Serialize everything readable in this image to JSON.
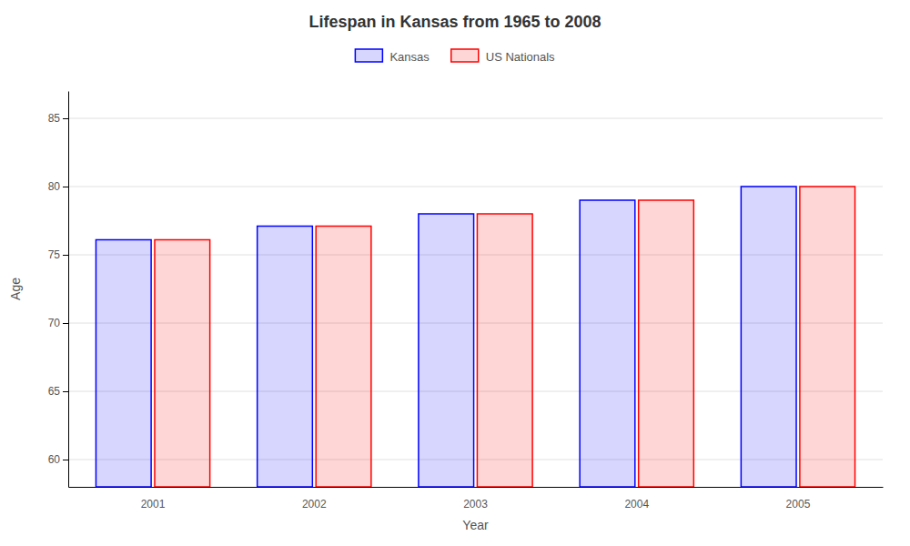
{
  "chart_data": {
    "type": "bar",
    "title": "Lifespan in Kansas from 1965 to 2008",
    "xlabel": "Year",
    "ylabel": "Age",
    "categories": [
      "2001",
      "2002",
      "2003",
      "2004",
      "2005"
    ],
    "series": [
      {
        "name": "Kansas",
        "color": "#0000ff",
        "values": [
          76.1,
          77.1,
          78.0,
          79.0,
          80.0
        ]
      },
      {
        "name": "US Nationals",
        "color": "#ff0000",
        "values": [
          76.1,
          77.1,
          78.0,
          79.0,
          80.0
        ]
      }
    ],
    "ylim": [
      58,
      87
    ],
    "yticks": [
      60,
      65,
      70,
      75,
      80,
      85
    ],
    "grid": true,
    "legend": "top"
  }
}
